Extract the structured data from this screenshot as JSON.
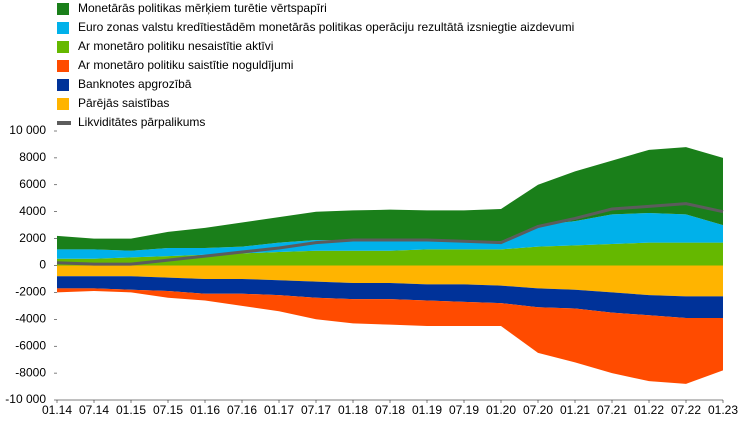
{
  "chart_data": {
    "type": "stacked-area",
    "categories": [
      "01.14",
      "07.14",
      "01.15",
      "07.15",
      "01.16",
      "07.16",
      "01.17",
      "07.17",
      "01.18",
      "07.18",
      "01.19",
      "07.19",
      "01.20",
      "07.20",
      "01.21",
      "07.21",
      "01.22",
      "07.22",
      "01.23"
    ],
    "series": [
      {
        "name": "Monetārās politikas mērķiem turētie vērtspapīri",
        "color": "#1a7f1a",
        "values": [
          1000,
          800,
          900,
          1200,
          1500,
          1800,
          1900,
          2100,
          2250,
          2300,
          2300,
          2300,
          2400,
          3000,
          3700,
          4000,
          4700,
          5000,
          5000
        ]
      },
      {
        "name": "Euro zonas valstu kredītiestādēm monetārās politikas operāciju rezultātā izsniegtie aizdevumi",
        "color": "#00b1ea",
        "values": [
          700,
          700,
          500,
          600,
          500,
          500,
          700,
          800,
          750,
          750,
          600,
          600,
          600,
          1600,
          1800,
          2200,
          2200,
          2100,
          1300
        ]
      },
      {
        "name": "Ar monetāro politiku nesaistītie aktīvi",
        "color": "#65b800",
        "values": [
          500,
          500,
          600,
          700,
          800,
          900,
          1000,
          1100,
          1100,
          1100,
          1200,
          1200,
          1200,
          1400,
          1500,
          1600,
          1700,
          1700,
          1700
        ]
      },
      {
        "name": "Ar monetāro politiku saistītie noguldījumi",
        "color": "#ff4b00",
        "values": [
          -300,
          -200,
          -200,
          -500,
          -500,
          -900,
          -1200,
          -1600,
          -1800,
          -1900,
          -1900,
          -1800,
          -1700,
          -3400,
          -4000,
          -4500,
          -4900,
          -4900,
          -3900
        ]
      },
      {
        "name": "Banknotes apgrozībā",
        "color": "#003299",
        "values": [
          -900,
          -900,
          -1000,
          -1000,
          -1100,
          -1100,
          -1100,
          -1200,
          -1200,
          -1200,
          -1200,
          -1300,
          -1300,
          -1400,
          -1400,
          -1500,
          -1500,
          -1600,
          -1600
        ]
      },
      {
        "name": "Pārējās saistības",
        "color": "#ffb400",
        "values": [
          -800,
          -800,
          -800,
          -900,
          -1000,
          -1000,
          -1100,
          -1200,
          -1300,
          -1300,
          -1400,
          -1400,
          -1500,
          -1700,
          -1800,
          -2000,
          -2200,
          -2300,
          -2300
        ]
      },
      {
        "name": "Likviditātes pārpalikums",
        "color": "#5c5c5c",
        "type": "line",
        "values": [
          200,
          100,
          100,
          400,
          700,
          1000,
          1300,
          1700,
          1900,
          1900,
          1900,
          1800,
          1700,
          2900,
          3500,
          4200,
          4400,
          4600,
          4000
        ]
      }
    ],
    "ylim": [
      -10000,
      10000
    ],
    "yticks": [
      {
        "value": -10000,
        "label": "-10 000"
      },
      -8000,
      -6000,
      -4000,
      -2000,
      0,
      2000,
      4000,
      6000,
      8000,
      {
        "value": 10000,
        "label": "10 000"
      }
    ]
  }
}
